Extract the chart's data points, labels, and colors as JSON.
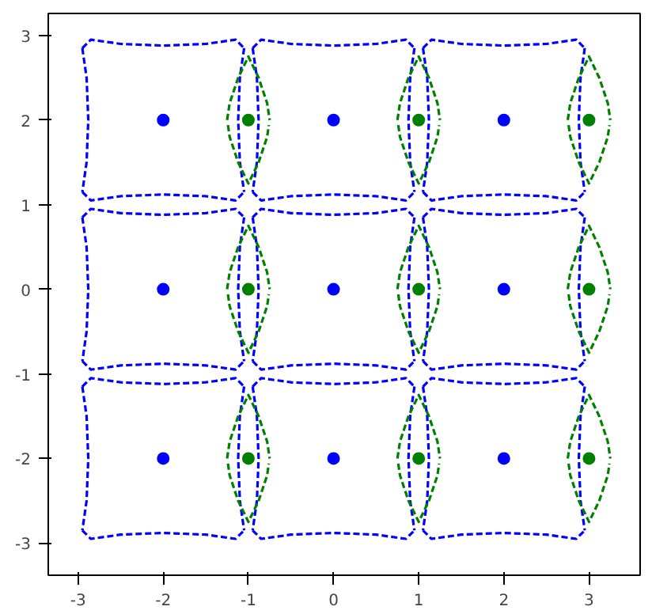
{
  "chart_data": {
    "type": "line",
    "xlim": [
      -3.35,
      3.6
    ],
    "ylim": [
      -3.38,
      3.26
    ],
    "xticks": [
      -3,
      -2,
      -1,
      0,
      1,
      2,
      3
    ],
    "yticks": [
      -3,
      -2,
      -1,
      0,
      1,
      2,
      3
    ],
    "grid": false,
    "line_style": "dashed",
    "series": [
      {
        "color": "#0000ff",
        "x": [
          -2.95,
          -2.85,
          -2.5,
          -2,
          -1.5,
          -1.15,
          -1.05
        ],
        "values": [
          2.85,
          2.95,
          2.9,
          2.88,
          2.9,
          2.95,
          2.85
        ]
      },
      {
        "color": "#0000ff",
        "x": [
          -2.95,
          -2.85,
          -2.5,
          -2,
          -1.5,
          -1.15,
          -1.05
        ],
        "values": [
          1.15,
          1.05,
          1.1,
          1.12,
          1.1,
          1.05,
          1.15
        ]
      },
      {
        "color": "#0000ff",
        "x": [
          -1.05,
          -1.1,
          -1.12,
          -1.1,
          -1.05
        ],
        "values": [
          2.85,
          2.5,
          2,
          1.5,
          1.15
        ]
      },
      {
        "color": "#0000ff",
        "x": [
          -2.95,
          -2.9,
          -2.88,
          -2.9,
          -2.95
        ],
        "values": [
          2.85,
          2.5,
          2,
          1.5,
          1.15
        ]
      },
      {
        "color": "#0000ff",
        "x": [
          -0.95,
          -0.85,
          -0.5,
          0,
          0.5,
          0.85,
          0.95
        ],
        "values": [
          2.85,
          2.95,
          2.9,
          2.88,
          2.9,
          2.95,
          2.85
        ]
      },
      {
        "color": "#0000ff",
        "x": [
          -0.95,
          -0.85,
          -0.5,
          0,
          0.5,
          0.85,
          0.95
        ],
        "values": [
          1.15,
          1.05,
          1.1,
          1.12,
          1.1,
          1.05,
          1.15
        ]
      },
      {
        "color": "#0000ff",
        "x": [
          0.95,
          0.9,
          0.88,
          0.9,
          0.95
        ],
        "values": [
          2.85,
          2.5,
          2,
          1.5,
          1.15
        ]
      },
      {
        "color": "#0000ff",
        "x": [
          -0.95,
          -0.9,
          -0.88,
          -0.9,
          -0.95
        ],
        "values": [
          2.85,
          2.5,
          2,
          1.5,
          1.15
        ]
      },
      {
        "color": "#0000ff",
        "x": [
          1.05,
          1.15,
          1.5,
          2,
          2.5,
          2.85,
          2.95
        ],
        "values": [
          2.85,
          2.95,
          2.9,
          2.88,
          2.9,
          2.95,
          2.85
        ]
      },
      {
        "color": "#0000ff",
        "x": [
          1.05,
          1.15,
          1.5,
          2,
          2.5,
          2.85,
          2.95
        ],
        "values": [
          1.15,
          1.05,
          1.1,
          1.12,
          1.1,
          1.05,
          1.15
        ]
      },
      {
        "color": "#0000ff",
        "x": [
          2.95,
          2.9,
          2.88,
          2.9,
          2.95
        ],
        "values": [
          2.85,
          2.5,
          2,
          1.5,
          1.15
        ]
      },
      {
        "color": "#0000ff",
        "x": [
          1.05,
          1.1,
          1.12,
          1.1,
          1.05
        ],
        "values": [
          2.85,
          2.5,
          2,
          1.5,
          1.15
        ]
      },
      {
        "color": "#0000ff",
        "x": [
          -2.95,
          -2.85,
          -2.5,
          -2,
          -1.5,
          -1.15,
          -1.05
        ],
        "values": [
          0.85,
          0.95,
          0.9,
          0.88,
          0.9,
          0.95,
          0.85
        ]
      },
      {
        "color": "#0000ff",
        "x": [
          -2.95,
          -2.85,
          -2.5,
          -2,
          -1.5,
          -1.15,
          -1.05
        ],
        "values": [
          -0.85,
          -0.95,
          -0.9,
          -0.88,
          -0.9,
          -0.95,
          -0.85
        ]
      },
      {
        "color": "#0000ff",
        "x": [
          -1.05,
          -1.1,
          -1.12,
          -1.1,
          -1.05
        ],
        "values": [
          0.85,
          0.5,
          0,
          -0.5,
          -0.85
        ]
      },
      {
        "color": "#0000ff",
        "x": [
          -2.95,
          -2.9,
          -2.88,
          -2.9,
          -2.95
        ],
        "values": [
          0.85,
          0.5,
          0,
          -0.5,
          -0.85
        ]
      },
      {
        "color": "#0000ff",
        "x": [
          -0.95,
          -0.85,
          -0.5,
          0,
          0.5,
          0.85,
          0.95
        ],
        "values": [
          0.85,
          0.95,
          0.9,
          0.88,
          0.9,
          0.95,
          0.85
        ]
      },
      {
        "color": "#0000ff",
        "x": [
          -0.95,
          -0.85,
          -0.5,
          0,
          0.5,
          0.85,
          0.95
        ],
        "values": [
          -0.85,
          -0.95,
          -0.9,
          -0.88,
          -0.9,
          -0.95,
          -0.85
        ]
      },
      {
        "color": "#0000ff",
        "x": [
          0.95,
          0.9,
          0.88,
          0.9,
          0.95
        ],
        "values": [
          0.85,
          0.5,
          0,
          -0.5,
          -0.85
        ]
      },
      {
        "color": "#0000ff",
        "x": [
          -0.95,
          -0.9,
          -0.88,
          -0.9,
          -0.95
        ],
        "values": [
          0.85,
          0.5,
          0,
          -0.5,
          -0.85
        ]
      },
      {
        "color": "#0000ff",
        "x": [
          1.05,
          1.15,
          1.5,
          2,
          2.5,
          2.85,
          2.95
        ],
        "values": [
          0.85,
          0.95,
          0.9,
          0.88,
          0.9,
          0.95,
          0.85
        ]
      },
      {
        "color": "#0000ff",
        "x": [
          1.05,
          1.15,
          1.5,
          2,
          2.5,
          2.85,
          2.95
        ],
        "values": [
          -0.85,
          -0.95,
          -0.9,
          -0.88,
          -0.9,
          -0.95,
          -0.85
        ]
      },
      {
        "color": "#0000ff",
        "x": [
          2.95,
          2.9,
          2.88,
          2.9,
          2.95
        ],
        "values": [
          0.85,
          0.5,
          0,
          -0.5,
          -0.85
        ]
      },
      {
        "color": "#0000ff",
        "x": [
          1.05,
          1.1,
          1.12,
          1.1,
          1.05
        ],
        "values": [
          0.85,
          0.5,
          0,
          -0.5,
          -0.85
        ]
      },
      {
        "color": "#0000ff",
        "x": [
          -2.95,
          -2.85,
          -2.5,
          -2,
          -1.5,
          -1.15,
          -1.05
        ],
        "values": [
          -1.15,
          -1.05,
          -1.1,
          -1.12,
          -1.1,
          -1.05,
          -1.15
        ]
      },
      {
        "color": "#0000ff",
        "x": [
          -2.95,
          -2.85,
          -2.5,
          -2,
          -1.5,
          -1.15,
          -1.05
        ],
        "values": [
          -2.85,
          -2.95,
          -2.9,
          -2.88,
          -2.9,
          -2.95,
          -2.85
        ]
      },
      {
        "color": "#0000ff",
        "x": [
          -1.05,
          -1.1,
          -1.12,
          -1.1,
          -1.05
        ],
        "values": [
          -1.15,
          -1.5,
          -2,
          -2.5,
          -2.85
        ]
      },
      {
        "color": "#0000ff",
        "x": [
          -2.95,
          -2.9,
          -2.88,
          -2.9,
          -2.95
        ],
        "values": [
          -1.15,
          -1.5,
          -2,
          -2.5,
          -2.85
        ]
      },
      {
        "color": "#0000ff",
        "x": [
          -0.95,
          -0.85,
          -0.5,
          0,
          0.5,
          0.85,
          0.95
        ],
        "values": [
          -1.15,
          -1.05,
          -1.1,
          -1.12,
          -1.1,
          -1.05,
          -1.15
        ]
      },
      {
        "color": "#0000ff",
        "x": [
          -0.95,
          -0.85,
          -0.5,
          0,
          0.5,
          0.85,
          0.95
        ],
        "values": [
          -2.85,
          -2.95,
          -2.9,
          -2.88,
          -2.9,
          -2.95,
          -2.85
        ]
      },
      {
        "color": "#0000ff",
        "x": [
          0.95,
          0.9,
          0.88,
          0.9,
          0.95
        ],
        "values": [
          -1.15,
          -1.5,
          -2,
          -2.5,
          -2.85
        ]
      },
      {
        "color": "#0000ff",
        "x": [
          -0.95,
          -0.9,
          -0.88,
          -0.9,
          -0.95
        ],
        "values": [
          -1.15,
          -1.5,
          -2,
          -2.5,
          -2.85
        ]
      },
      {
        "color": "#0000ff",
        "x": [
          1.05,
          1.15,
          1.5,
          2,
          2.5,
          2.85,
          2.95
        ],
        "values": [
          -1.15,
          -1.05,
          -1.1,
          -1.12,
          -1.1,
          -1.05,
          -1.15
        ]
      },
      {
        "color": "#0000ff",
        "x": [
          1.05,
          1.15,
          1.5,
          2,
          2.5,
          2.85,
          2.95
        ],
        "values": [
          -2.85,
          -2.95,
          -2.9,
          -2.88,
          -2.9,
          -2.95,
          -2.85
        ]
      },
      {
        "color": "#0000ff",
        "x": [
          2.95,
          2.9,
          2.88,
          2.9,
          2.95
        ],
        "values": [
          -1.15,
          -1.5,
          -2,
          -2.5,
          -2.85
        ]
      },
      {
        "color": "#0000ff",
        "x": [
          1.05,
          1.1,
          1.12,
          1.1,
          1.05
        ],
        "values": [
          -1.15,
          -1.5,
          -2,
          -2.5,
          -2.85
        ]
      },
      {
        "color": "#008000",
        "x": [
          -1.25,
          -1.22,
          -1.12,
          -1,
          -0.88,
          -0.78,
          -0.75
        ],
        "values": [
          2,
          2.2,
          2.5,
          2.75,
          2.5,
          2.2,
          2
        ]
      },
      {
        "color": "#008000",
        "x": [
          -1.24,
          -1.22,
          -1.12,
          -1,
          -0.88,
          -0.78,
          -0.76
        ],
        "values": [
          1.94,
          1.8,
          1.5,
          1.25,
          1.5,
          1.8,
          1.94
        ]
      },
      {
        "color": "#008000",
        "x": [
          0.75,
          0.78,
          0.88,
          1,
          1.12,
          1.22,
          1.25
        ],
        "values": [
          2,
          2.2,
          2.5,
          2.75,
          2.5,
          2.2,
          2
        ]
      },
      {
        "color": "#008000",
        "x": [
          0.76,
          0.78,
          0.88,
          1,
          1.12,
          1.22,
          1.24
        ],
        "values": [
          1.94,
          1.8,
          1.5,
          1.25,
          1.5,
          1.8,
          1.94
        ]
      },
      {
        "color": "#008000",
        "x": [
          2.75,
          2.78,
          2.88,
          3,
          3.12,
          3.22,
          3.25
        ],
        "values": [
          2,
          2.2,
          2.5,
          2.75,
          2.5,
          2.2,
          2
        ]
      },
      {
        "color": "#008000",
        "x": [
          2.76,
          2.78,
          2.88,
          3,
          3.12,
          3.22,
          3.24
        ],
        "values": [
          1.94,
          1.8,
          1.5,
          1.25,
          1.5,
          1.8,
          1.94
        ]
      },
      {
        "color": "#008000",
        "x": [
          -1.25,
          -1.22,
          -1.12,
          -1,
          -0.88,
          -0.78,
          -0.75
        ],
        "values": [
          0,
          0.2,
          0.5,
          0.75,
          0.5,
          0.2,
          0
        ]
      },
      {
        "color": "#008000",
        "x": [
          -1.24,
          -1.22,
          -1.12,
          -1,
          -0.88,
          -0.78,
          -0.76
        ],
        "values": [
          -0.06,
          -0.2,
          -0.5,
          -0.75,
          -0.5,
          -0.2,
          -0.06
        ]
      },
      {
        "color": "#008000",
        "x": [
          0.75,
          0.78,
          0.88,
          1,
          1.12,
          1.22,
          1.25
        ],
        "values": [
          0,
          0.2,
          0.5,
          0.75,
          0.5,
          0.2,
          0
        ]
      },
      {
        "color": "#008000",
        "x": [
          0.76,
          0.78,
          0.88,
          1,
          1.12,
          1.22,
          1.24
        ],
        "values": [
          -0.06,
          -0.2,
          -0.5,
          -0.75,
          -0.5,
          -0.2,
          -0.06
        ]
      },
      {
        "color": "#008000",
        "x": [
          2.75,
          2.78,
          2.88,
          3,
          3.12,
          3.22,
          3.25
        ],
        "values": [
          0,
          0.2,
          0.5,
          0.75,
          0.5,
          0.2,
          0
        ]
      },
      {
        "color": "#008000",
        "x": [
          2.76,
          2.78,
          2.88,
          3,
          3.12,
          3.22,
          3.24
        ],
        "values": [
          -0.06,
          -0.2,
          -0.5,
          -0.75,
          -0.5,
          -0.2,
          -0.06
        ]
      },
      {
        "color": "#008000",
        "x": [
          -1.25,
          -1.22,
          -1.12,
          -1,
          -0.88,
          -0.78,
          -0.75
        ],
        "values": [
          -2,
          -1.8,
          -1.5,
          -1.25,
          -1.5,
          -1.8,
          -2
        ]
      },
      {
        "color": "#008000",
        "x": [
          -1.24,
          -1.22,
          -1.12,
          -1,
          -0.88,
          -0.78,
          -0.76
        ],
        "values": [
          -2.06,
          -2.2,
          -2.5,
          -2.75,
          -2.5,
          -2.2,
          -2.06
        ]
      },
      {
        "color": "#008000",
        "x": [
          0.75,
          0.78,
          0.88,
          1,
          1.12,
          1.22,
          1.25
        ],
        "values": [
          -2,
          -1.8,
          -1.5,
          -1.25,
          -1.5,
          -1.8,
          -2
        ]
      },
      {
        "color": "#008000",
        "x": [
          0.76,
          0.78,
          0.88,
          1,
          1.12,
          1.22,
          1.24
        ],
        "values": [
          -2.06,
          -2.2,
          -2.5,
          -2.75,
          -2.5,
          -2.2,
          -2.06
        ]
      },
      {
        "color": "#008000",
        "x": [
          2.75,
          2.78,
          2.88,
          3,
          3.12,
          3.22,
          3.25
        ],
        "values": [
          -2,
          -1.8,
          -1.5,
          -1.25,
          -1.5,
          -1.8,
          -2
        ]
      },
      {
        "color": "#008000",
        "x": [
          2.76,
          2.78,
          2.88,
          3,
          3.12,
          3.22,
          3.24
        ],
        "values": [
          -2.06,
          -2.2,
          -2.5,
          -2.75,
          -2.5,
          -2.2,
          -2.06
        ]
      },
      {
        "type": "scatter",
        "marker": "circle",
        "color": "#0000ff",
        "x": [
          -2,
          0,
          2,
          -2,
          0,
          2,
          -2,
          0,
          2
        ],
        "values": [
          2,
          2,
          2,
          0,
          0,
          0,
          -2,
          -2,
          -2
        ]
      },
      {
        "type": "scatter",
        "marker": "circle",
        "color": "#008000",
        "x": [
          -1,
          1,
          3,
          -1,
          1,
          3,
          -1,
          1,
          3
        ],
        "values": [
          2,
          2,
          2,
          0,
          0,
          0,
          -2,
          -2,
          -2
        ]
      }
    ]
  }
}
